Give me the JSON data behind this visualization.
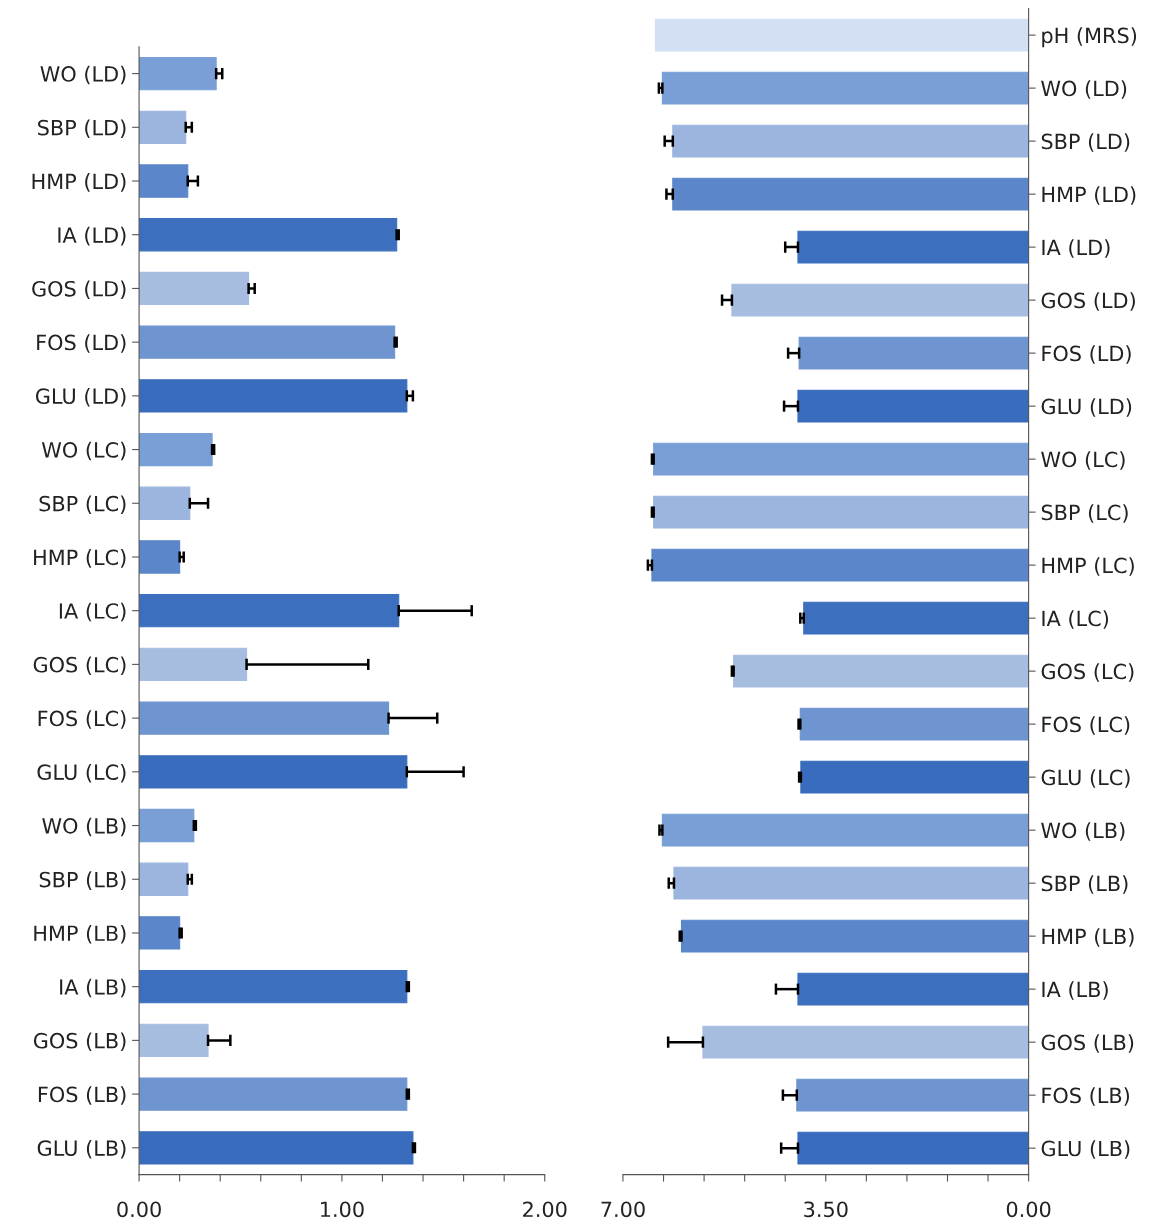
{
  "chart_data": [
    {
      "type": "bar",
      "orientation": "horizontal",
      "categories": [
        "WO (LD)",
        "SBP (LD)",
        "HMP (LD)",
        "IA (LD)",
        "GOS (LD)",
        "FOS (LD)",
        "GLU (LD)",
        "WO (LC)",
        "SBP (LC)",
        "HMP (LC)",
        "IA (LC)",
        "GOS (LC)",
        "FOS (LC)",
        "GLU (LC)",
        "WO (LB)",
        "SBP (LB)",
        "HMP (LB)",
        "IA (LB)",
        "GOS (LB)",
        "FOS (LB)",
        "GLU (LB)"
      ],
      "values": [
        0.38,
        0.23,
        0.24,
        1.27,
        0.54,
        1.26,
        1.32,
        0.36,
        0.25,
        0.2,
        1.28,
        0.53,
        1.23,
        1.32,
        0.27,
        0.24,
        0.2,
        1.32,
        0.34,
        1.32,
        1.35
      ],
      "errors": [
        [
          0.38,
          0.41
        ],
        [
          0.23,
          0.26
        ],
        [
          0.24,
          0.29
        ],
        [
          1.27,
          1.28
        ],
        [
          0.54,
          0.57
        ],
        [
          1.26,
          1.27
        ],
        [
          1.32,
          1.35
        ],
        [
          0.36,
          0.37
        ],
        [
          0.25,
          0.34
        ],
        [
          0.2,
          0.22
        ],
        [
          1.28,
          1.64
        ],
        [
          0.53,
          1.13
        ],
        [
          1.23,
          1.47
        ],
        [
          1.32,
          1.6
        ],
        [
          0.27,
          0.28
        ],
        [
          0.24,
          0.26
        ],
        [
          0.2,
          0.21
        ],
        [
          1.32,
          1.33
        ],
        [
          0.34,
          0.45
        ],
        [
          1.32,
          1.33
        ],
        [
          1.35,
          1.36
        ]
      ],
      "colors": [
        "#7a9fd6",
        "#9bb5de",
        "#5b86c9",
        "#3d6fbf",
        "#a7bde0",
        "#6f95d0",
        "#3a6cbd",
        "#7a9fd6",
        "#9bb5de",
        "#5b86c9",
        "#3d6fbf",
        "#a7bde0",
        "#6f95d0",
        "#3a6cbd",
        "#7a9fd6",
        "#9bb5de",
        "#5b86c9",
        "#3d6fbf",
        "#a7bde0",
        "#6f95d0",
        "#3a6cbd"
      ],
      "xlim": [
        0,
        2
      ],
      "xticks": [
        {
          "value": 0,
          "label": "0.00"
        },
        {
          "value": 0.2,
          "label": null
        },
        {
          "value": 0.4,
          "label": null
        },
        {
          "value": 0.6,
          "label": null
        },
        {
          "value": 0.8,
          "label": null
        },
        {
          "value": 1,
          "label": "1.00"
        },
        {
          "value": 1.2,
          "label": null
        },
        {
          "value": 1.4,
          "label": null
        },
        {
          "value": 1.6,
          "label": null
        },
        {
          "value": 1.8,
          "label": null
        },
        {
          "value": 2,
          "label": "2.00"
        }
      ],
      "grid": false,
      "legend": false
    },
    {
      "type": "bar",
      "orientation": "horizontal",
      "categories": [
        "pH (MRS)",
        "WO (LD)",
        "SBP (LD)",
        "HMP (LD)",
        "IA (LD)",
        "GOS (LD)",
        "FOS (LD)",
        "GLU (LD)",
        "WO (LC)",
        "SBP (LC)",
        "HMP (LC)",
        "IA (LC)",
        "GOS (LC)",
        "FOS (LC)",
        "GLU (LC)",
        "WO (LB)",
        "SBP (LB)",
        "HMP (LB)",
        "IA (LB)",
        "GOS (LB)",
        "FOS (LB)",
        "GLU (LB)"
      ],
      "values": [
        6.44,
        6.32,
        6.14,
        6.14,
        3.98,
        5.12,
        3.96,
        3.98,
        6.47,
        6.47,
        6.5,
        3.88,
        5.09,
        3.94,
        3.93,
        6.32,
        6.12,
        5.99,
        3.98,
        5.62,
        4.0,
        3.98
      ],
      "errors": [
        null,
        [
          6.32,
          6.38
        ],
        [
          6.14,
          6.28
        ],
        [
          6.14,
          6.25
        ],
        [
          3.98,
          4.2
        ],
        [
          5.12,
          5.29
        ],
        [
          3.96,
          4.15
        ],
        [
          3.98,
          4.22
        ],
        [
          6.47,
          6.5
        ],
        [
          6.47,
          6.5
        ],
        [
          6.5,
          6.57
        ],
        [
          3.88,
          3.94
        ],
        [
          5.09,
          5.12
        ],
        [
          3.94,
          3.97
        ],
        [
          3.93,
          3.96
        ],
        [
          6.32,
          6.37
        ],
        [
          6.12,
          6.21
        ],
        [
          5.99,
          6.02
        ],
        [
          3.98,
          4.36
        ],
        [
          5.62,
          6.22
        ],
        [
          4.0,
          4.24
        ],
        [
          3.98,
          4.27
        ]
      ],
      "colors": [
        "#d3dff2",
        "#7a9fd6",
        "#9bb5de",
        "#5b86c9",
        "#3d6fbf",
        "#a7bde0",
        "#6f95d0",
        "#3a6cbd",
        "#7a9fd6",
        "#9bb5de",
        "#5b86c9",
        "#3d6fbf",
        "#a7bde0",
        "#6f95d0",
        "#3a6cbd",
        "#7a9fd6",
        "#9bb5de",
        "#5b86c9",
        "#3d6fbf",
        "#a7bde0",
        "#6f95d0",
        "#3a6cbd"
      ],
      "xlim": [
        7,
        0
      ],
      "xticks": [
        {
          "value": 7,
          "label": "7.00"
        },
        {
          "value": 6.3,
          "label": null
        },
        {
          "value": 5.6,
          "label": null
        },
        {
          "value": 4.9,
          "label": null
        },
        {
          "value": 4.2,
          "label": null
        },
        {
          "value": 3.5,
          "label": "3.50"
        },
        {
          "value": 2.8,
          "label": null
        },
        {
          "value": 2.1,
          "label": null
        },
        {
          "value": 1.4,
          "label": null
        },
        {
          "value": 0.7,
          "label": null
        },
        {
          "value": 0,
          "label": "0.00"
        }
      ],
      "grid": false,
      "legend": false
    }
  ]
}
